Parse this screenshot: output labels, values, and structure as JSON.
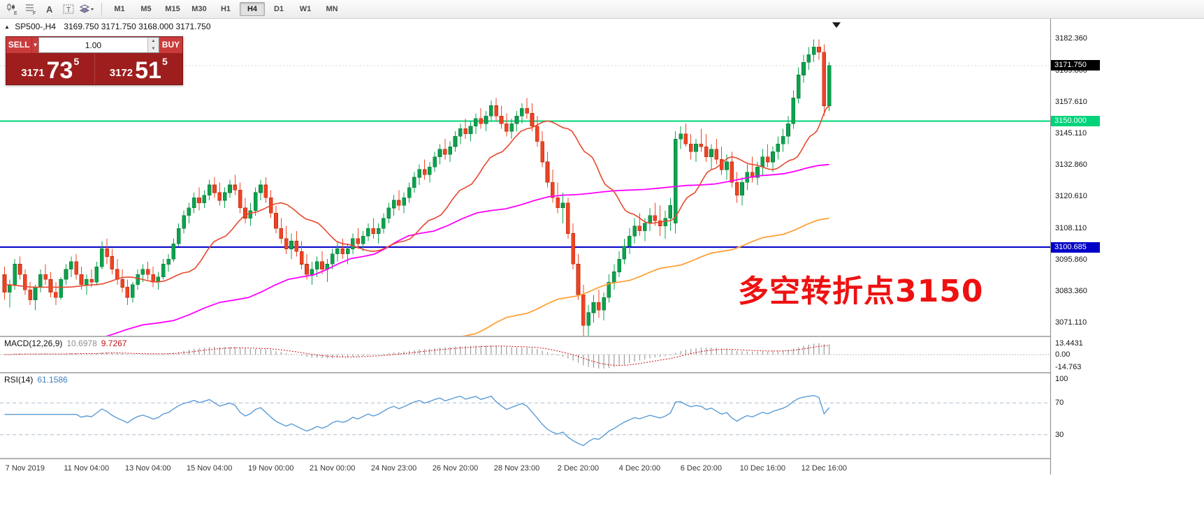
{
  "toolbar": {
    "icon_letters": [
      "E",
      "F",
      "A",
      "T"
    ],
    "timeframes": [
      "M1",
      "M5",
      "M15",
      "M30",
      "H1",
      "H4",
      "D1",
      "W1",
      "MN"
    ],
    "active_timeframe": "H4"
  },
  "chart": {
    "title": "SP500-,H4",
    "ohlc": "3169.750 3171.750 3168.000 3171.750",
    "annotation": "多空转折点3150",
    "current_price": {
      "value": 3171.75,
      "label": "3171.750"
    },
    "levels": {
      "resistance": {
        "price": 3150.0,
        "label": "3150.000"
      },
      "support": {
        "price": 3100.685,
        "label": "3100.685"
      }
    },
    "axis_labels": [
      "3182.360",
      "3169.860",
      "3157.610",
      "3145.110",
      "3132.860",
      "3120.610",
      "3108.110",
      "3095.860",
      "3083.360",
      "3071.110"
    ],
    "price_range": {
      "top": 3190,
      "bottom": 3066
    }
  },
  "trade_panel": {
    "sell_label": "SELL",
    "buy_label": "BUY",
    "volume": "1.00",
    "bid": {
      "big": "3171",
      "huge": "73",
      "sup": "5"
    },
    "ask": {
      "big": "3172",
      "huge": "51",
      "sup": "5"
    }
  },
  "macd": {
    "label": "MACD(12,26,9)",
    "value_main": "10.6978",
    "value_signal": "9.7267",
    "axis": [
      {
        "v": 13.4431,
        "label": "13.4431"
      },
      {
        "v": 0,
        "label": "0.00"
      },
      {
        "v": -14.763,
        "label": "-14.763"
      }
    ],
    "range": 20.5
  },
  "rsi": {
    "label": "RSI(14)",
    "value": "61.1586",
    "axis": [
      {
        "v": 100,
        "label": "100"
      },
      {
        "v": 70,
        "label": "70"
      },
      {
        "v": 30,
        "label": "30"
      }
    ],
    "levels": [
      70,
      30
    ]
  },
  "colors": {
    "up": "#0da14d",
    "up_border": "#087a39",
    "down": "#ee4424",
    "down_border": "#b92d12",
    "ma_fast": "#e8482e",
    "ma_mid": "#ff00ff",
    "ma_slow": "#ffa136",
    "level_green": "#00d37a",
    "level_blue": "#0000c8",
    "current_badge": "#000000",
    "bid_line": "#d8d8d8",
    "macd_bar": "#9c9c9c",
    "macd_signal": "#cc1111",
    "rsi_line": "#5b9bd5",
    "rsi_level": "#a9bdd0",
    "annotation": "#ee1111"
  },
  "chart_data": {
    "type": "candlestick",
    "symbol": "SP500-",
    "timeframe": "H4",
    "ylim": [
      3066,
      3190
    ],
    "candles": [
      [
        3090,
        3093,
        3080,
        3083
      ],
      [
        3083,
        3088,
        3077,
        3086
      ],
      [
        3086,
        3096,
        3084,
        3094
      ],
      [
        3094,
        3097,
        3088,
        3090
      ],
      [
        3090,
        3092,
        3082,
        3084
      ],
      [
        3084,
        3087,
        3078,
        3080
      ],
      [
        3080,
        3086,
        3076,
        3085
      ],
      [
        3085,
        3092,
        3083,
        3090
      ],
      [
        3090,
        3094,
        3086,
        3088
      ],
      [
        3088,
        3091,
        3081,
        3083
      ],
      [
        3083,
        3087,
        3078,
        3081
      ],
      [
        3081,
        3089,
        3080,
        3088
      ],
      [
        3088,
        3094,
        3086,
        3092
      ],
      [
        3092,
        3097,
        3089,
        3095
      ],
      [
        3095,
        3098,
        3088,
        3090
      ],
      [
        3090,
        3093,
        3084,
        3086
      ],
      [
        3086,
        3090,
        3082,
        3088
      ],
      [
        3088,
        3092,
        3085,
        3087
      ],
      [
        3087,
        3095,
        3086,
        3093
      ],
      [
        3093,
        3103,
        3092,
        3100
      ],
      [
        3100,
        3104,
        3094,
        3097
      ],
      [
        3097,
        3100,
        3090,
        3092
      ],
      [
        3092,
        3096,
        3086,
        3088
      ],
      [
        3088,
        3092,
        3083,
        3085
      ],
      [
        3085,
        3088,
        3078,
        3081
      ],
      [
        3081,
        3087,
        3079,
        3086
      ],
      [
        3086,
        3092,
        3084,
        3090
      ],
      [
        3090,
        3094,
        3087,
        3092
      ],
      [
        3092,
        3095,
        3088,
        3090
      ],
      [
        3090,
        3093,
        3085,
        3087
      ],
      [
        3087,
        3091,
        3084,
        3089
      ],
      [
        3089,
        3096,
        3088,
        3094
      ],
      [
        3094,
        3098,
        3091,
        3096
      ],
      [
        3096,
        3104,
        3095,
        3102
      ],
      [
        3102,
        3110,
        3101,
        3108
      ],
      [
        3108,
        3115,
        3106,
        3113
      ],
      [
        3113,
        3118,
        3110,
        3116
      ],
      [
        3116,
        3122,
        3114,
        3120
      ],
      [
        3120,
        3124,
        3115,
        3118
      ],
      [
        3118,
        3123,
        3116,
        3121
      ],
      [
        3121,
        3127,
        3119,
        3125
      ],
      [
        3125,
        3128,
        3120,
        3122
      ],
      [
        3122,
        3126,
        3117,
        3119
      ],
      [
        3119,
        3124,
        3116,
        3122
      ],
      [
        3122,
        3127,
        3120,
        3125
      ],
      [
        3125,
        3129,
        3121,
        3123
      ],
      [
        3123,
        3126,
        3114,
        3116
      ],
      [
        3116,
        3120,
        3110,
        3112
      ],
      [
        3112,
        3118,
        3109,
        3115
      ],
      [
        3115,
        3124,
        3113,
        3122
      ],
      [
        3122,
        3127,
        3119,
        3125
      ],
      [
        3125,
        3128,
        3118,
        3120
      ],
      [
        3120,
        3123,
        3112,
        3114
      ],
      [
        3114,
        3117,
        3106,
        3108
      ],
      [
        3108,
        3112,
        3102,
        3104
      ],
      [
        3104,
        3109,
        3098,
        3100
      ],
      [
        3100,
        3106,
        3096,
        3103
      ],
      [
        3103,
        3107,
        3097,
        3099
      ],
      [
        3099,
        3103,
        3092,
        3094
      ],
      [
        3094,
        3098,
        3088,
        3090
      ],
      [
        3090,
        3095,
        3086,
        3092
      ],
      [
        3092,
        3097,
        3089,
        3095
      ],
      [
        3095,
        3099,
        3090,
        3092
      ],
      [
        3092,
        3096,
        3087,
        3094
      ],
      [
        3094,
        3100,
        3092,
        3098
      ],
      [
        3098,
        3103,
        3095,
        3100
      ],
      [
        3100,
        3104,
        3096,
        3098
      ],
      [
        3098,
        3102,
        3094,
        3100
      ],
      [
        3100,
        3106,
        3098,
        3104
      ],
      [
        3104,
        3108,
        3100,
        3102
      ],
      [
        3102,
        3107,
        3099,
        3105
      ],
      [
        3105,
        3110,
        3103,
        3108
      ],
      [
        3108,
        3112,
        3104,
        3106
      ],
      [
        3106,
        3110,
        3102,
        3108
      ],
      [
        3108,
        3114,
        3106,
        3112
      ],
      [
        3112,
        3118,
        3110,
        3116
      ],
      [
        3116,
        3121,
        3113,
        3119
      ],
      [
        3119,
        3123,
        3115,
        3117
      ],
      [
        3117,
        3122,
        3114,
        3120
      ],
      [
        3120,
        3126,
        3118,
        3124
      ],
      [
        3124,
        3130,
        3122,
        3128
      ],
      [
        3128,
        3133,
        3125,
        3131
      ],
      [
        3131,
        3135,
        3127,
        3129
      ],
      [
        3129,
        3134,
        3126,
        3132
      ],
      [
        3132,
        3138,
        3130,
        3136
      ],
      [
        3136,
        3141,
        3133,
        3139
      ],
      [
        3139,
        3143,
        3135,
        3137
      ],
      [
        3137,
        3142,
        3134,
        3140
      ],
      [
        3140,
        3146,
        3138,
        3144
      ],
      [
        3144,
        3149,
        3141,
        3147
      ],
      [
        3147,
        3151,
        3143,
        3145
      ],
      [
        3145,
        3150,
        3142,
        3148
      ],
      [
        3148,
        3153,
        3145,
        3151
      ],
      [
        3151,
        3155,
        3147,
        3149
      ],
      [
        3149,
        3154,
        3146,
        3152
      ],
      [
        3152,
        3158,
        3150,
        3156
      ],
      [
        3156,
        3159,
        3150,
        3152
      ],
      [
        3152,
        3156,
        3147,
        3149
      ],
      [
        3149,
        3153,
        3144,
        3146
      ],
      [
        3146,
        3151,
        3143,
        3149
      ],
      [
        3149,
        3154,
        3146,
        3152
      ],
      [
        3152,
        3157,
        3149,
        3155
      ],
      [
        3155,
        3159,
        3151,
        3153
      ],
      [
        3153,
        3157,
        3146,
        3148
      ],
      [
        3148,
        3152,
        3140,
        3142
      ],
      [
        3142,
        3146,
        3132,
        3134
      ],
      [
        3134,
        3138,
        3124,
        3126
      ],
      [
        3126,
        3131,
        3118,
        3120
      ],
      [
        3120,
        3126,
        3114,
        3116
      ],
      [
        3116,
        3122,
        3110,
        3118
      ],
      [
        3118,
        3120,
        3104,
        3106
      ],
      [
        3106,
        3110,
        3092,
        3094
      ],
      [
        3094,
        3098,
        3080,
        3082
      ],
      [
        3082,
        3086,
        3064,
        3070
      ],
      [
        3070,
        3078,
        3063,
        3075
      ],
      [
        3075,
        3082,
        3071,
        3079
      ],
      [
        3079,
        3084,
        3073,
        3076
      ],
      [
        3076,
        3083,
        3072,
        3081
      ],
      [
        3081,
        3090,
        3079,
        3087
      ],
      [
        3087,
        3094,
        3084,
        3091
      ],
      [
        3091,
        3099,
        3089,
        3096
      ],
      [
        3096,
        3104,
        3094,
        3101
      ],
      [
        3101,
        3108,
        3098,
        3105
      ],
      [
        3105,
        3112,
        3102,
        3109
      ],
      [
        3109,
        3114,
        3105,
        3107
      ],
      [
        3107,
        3112,
        3103,
        3110
      ],
      [
        3110,
        3116,
        3107,
        3113
      ],
      [
        3113,
        3118,
        3109,
        3111
      ],
      [
        3111,
        3117,
        3105,
        3109
      ],
      [
        3109,
        3115,
        3104,
        3112
      ],
      [
        3112,
        3120,
        3107,
        3117
      ],
      [
        3110,
        3146,
        3106,
        3143
      ],
      [
        3143,
        3148,
        3139,
        3145
      ],
      [
        3145,
        3149,
        3140,
        3141
      ],
      [
        3141,
        3145,
        3135,
        3138
      ],
      [
        3138,
        3143,
        3134,
        3141
      ],
      [
        3141,
        3147,
        3138,
        3140
      ],
      [
        3140,
        3145,
        3134,
        3136
      ],
      [
        3136,
        3141,
        3131,
        3139
      ],
      [
        3139,
        3143,
        3133,
        3135
      ],
      [
        3135,
        3140,
        3129,
        3131
      ],
      [
        3131,
        3137,
        3127,
        3134
      ],
      [
        3134,
        3138,
        3124,
        3126
      ],
      [
        3126,
        3130,
        3118,
        3121
      ],
      [
        3121,
        3128,
        3117,
        3126
      ],
      [
        3126,
        3133,
        3123,
        3130
      ],
      [
        3130,
        3136,
        3126,
        3128
      ],
      [
        3128,
        3134,
        3125,
        3132
      ],
      [
        3132,
        3139,
        3129,
        3136
      ],
      [
        3136,
        3141,
        3132,
        3134
      ],
      [
        3134,
        3140,
        3130,
        3138
      ],
      [
        3138,
        3144,
        3135,
        3141
      ],
      [
        3141,
        3147,
        3138,
        3144
      ],
      [
        3144,
        3152,
        3141,
        3149
      ],
      [
        3149,
        3162,
        3147,
        3159
      ],
      [
        3159,
        3171,
        3157,
        3168
      ],
      [
        3168,
        3176,
        3165,
        3173
      ],
      [
        3173,
        3179,
        3170,
        3176
      ],
      [
        3176,
        3182,
        3173,
        3179
      ],
      [
        3179,
        3182,
        3174,
        3177
      ],
      [
        3177,
        3180,
        3152,
        3156
      ],
      [
        3156,
        3173,
        3154,
        3171.75
      ]
    ],
    "moving_averages": {
      "fast_red": [
        [
          0,
          3086
        ],
        [
          6,
          3085
        ],
        [
          12,
          3085
        ],
        [
          18,
          3086
        ],
        [
          24,
          3089
        ],
        [
          30,
          3087
        ],
        [
          36,
          3091
        ],
        [
          42,
          3104
        ],
        [
          48,
          3114
        ],
        [
          54,
          3118
        ],
        [
          60,
          3111
        ],
        [
          66,
          3102
        ],
        [
          72,
          3099
        ],
        [
          78,
          3103
        ],
        [
          84,
          3112
        ],
        [
          90,
          3124
        ],
        [
          96,
          3137
        ],
        [
          102,
          3147
        ],
        [
          106,
          3150
        ],
        [
          110,
          3147
        ],
        [
          114,
          3137
        ],
        [
          118,
          3124
        ],
        [
          122,
          3114
        ],
        [
          126,
          3110
        ],
        [
          130,
          3111
        ],
        [
          134,
          3121
        ],
        [
          138,
          3131
        ],
        [
          142,
          3136
        ],
        [
          146,
          3133
        ],
        [
          150,
          3131
        ],
        [
          154,
          3135
        ],
        [
          158,
          3145
        ],
        [
          161,
          3156
        ]
      ],
      "mid_magenta": [
        [
          0,
          3058
        ],
        [
          15,
          3064
        ],
        [
          30,
          3071
        ],
        [
          45,
          3080
        ],
        [
          58,
          3089
        ],
        [
          70,
          3097
        ],
        [
          81,
          3106
        ],
        [
          95,
          3115
        ],
        [
          109,
          3121
        ],
        [
          122,
          3123
        ],
        [
          136,
          3125
        ],
        [
          150,
          3129
        ],
        [
          161,
          3133
        ]
      ],
      "slow_orange": [
        [
          70,
          3050
        ],
        [
          80,
          3058
        ],
        [
          90,
          3066
        ],
        [
          100,
          3074
        ],
        [
          110,
          3081
        ],
        [
          120,
          3087
        ],
        [
          130,
          3093
        ],
        [
          140,
          3099
        ],
        [
          150,
          3105
        ],
        [
          161,
          3112
        ]
      ]
    },
    "x_labels": [
      {
        "i": 4,
        "label": "7 Nov 2019"
      },
      {
        "i": 16,
        "label": "11 Nov 04:00"
      },
      {
        "i": 28,
        "label": "13 Nov 04:00"
      },
      {
        "i": 40,
        "label": "15 Nov 04:00"
      },
      {
        "i": 52,
        "label": "19 Nov 00:00"
      },
      {
        "i": 64,
        "label": "21 Nov 00:00"
      },
      {
        "i": 76,
        "label": "24 Nov 23:00"
      },
      {
        "i": 88,
        "label": "26 Nov 20:00"
      },
      {
        "i": 100,
        "label": "28 Nov 23:00"
      },
      {
        "i": 112,
        "label": "2 Dec 20:00"
      },
      {
        "i": 124,
        "label": "4 Dec 20:00"
      },
      {
        "i": 136,
        "label": "6 Dec 20:00"
      },
      {
        "i": 148,
        "label": "10 Dec 16:00"
      },
      {
        "i": 160,
        "label": "12 Dec 16:00"
      }
    ]
  }
}
